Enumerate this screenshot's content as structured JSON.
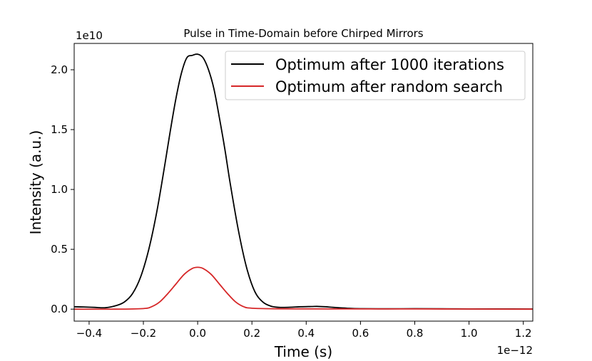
{
  "chart_data": {
    "type": "line",
    "title": "Pulse in Time-Domain before Chirped Mirrors",
    "xlabel": "Time (s)",
    "ylabel": "Intensity (a.u.)",
    "x_offset_label": "1e−12",
    "y_offset_label": "1e10",
    "xlim": [
      -0.455,
      1.235
    ],
    "ylim": [
      -0.1,
      2.22
    ],
    "x_ticks": [
      -0.4,
      -0.2,
      0.0,
      0.2,
      0.4,
      0.6,
      0.8,
      1.0,
      1.2
    ],
    "x_tick_labels": [
      "−0.4",
      "−0.2",
      "0.0",
      "0.2",
      "0.4",
      "0.6",
      "0.8",
      "1.0",
      "1.2"
    ],
    "y_ticks": [
      0.0,
      0.5,
      1.0,
      1.5,
      2.0
    ],
    "y_tick_labels": [
      "0.0",
      "0.5",
      "1.0",
      "1.5",
      "2.0"
    ],
    "grid": false,
    "legend_position": "top-right",
    "series": [
      {
        "name": "Optimum after 1000 iterations",
        "color": "#000000",
        "x": [
          -0.455,
          -0.42,
          -0.38,
          -0.34,
          -0.3,
          -0.27,
          -0.24,
          -0.21,
          -0.18,
          -0.15,
          -0.12,
          -0.1,
          -0.08,
          -0.06,
          -0.04,
          -0.02,
          0.0,
          0.02,
          0.04,
          0.06,
          0.08,
          0.1,
          0.12,
          0.15,
          0.18,
          0.21,
          0.24,
          0.27,
          0.3,
          0.34,
          0.38,
          0.42,
          0.44,
          0.47,
          0.5,
          0.55,
          0.6,
          0.7,
          0.8,
          0.9,
          1.0,
          1.1,
          1.235
        ],
        "y": [
          0.02,
          0.018,
          0.015,
          0.012,
          0.03,
          0.06,
          0.13,
          0.27,
          0.5,
          0.82,
          1.22,
          1.5,
          1.76,
          1.97,
          2.1,
          2.12,
          2.13,
          2.1,
          2.0,
          1.84,
          1.6,
          1.34,
          1.05,
          0.66,
          0.35,
          0.15,
          0.06,
          0.025,
          0.015,
          0.016,
          0.02,
          0.022,
          0.023,
          0.02,
          0.015,
          0.008,
          0.004,
          0.003,
          0.004,
          0.003,
          0.002,
          0.002,
          0.001
        ]
      },
      {
        "name": "Optimum after random search",
        "color": "#d62728",
        "x": [
          -0.455,
          -0.3,
          -0.2,
          -0.17,
          -0.14,
          -0.11,
          -0.08,
          -0.05,
          -0.02,
          0.0,
          0.02,
          0.05,
          0.08,
          0.11,
          0.14,
          0.17,
          0.2,
          0.3,
          0.5,
          0.8,
          1.0,
          1.235
        ],
        "y": [
          0.0,
          0.0,
          0.005,
          0.02,
          0.06,
          0.13,
          0.21,
          0.29,
          0.34,
          0.35,
          0.34,
          0.29,
          0.21,
          0.13,
          0.06,
          0.02,
          0.008,
          0.003,
          0.002,
          0.002,
          0.001,
          0.0
        ]
      }
    ]
  }
}
